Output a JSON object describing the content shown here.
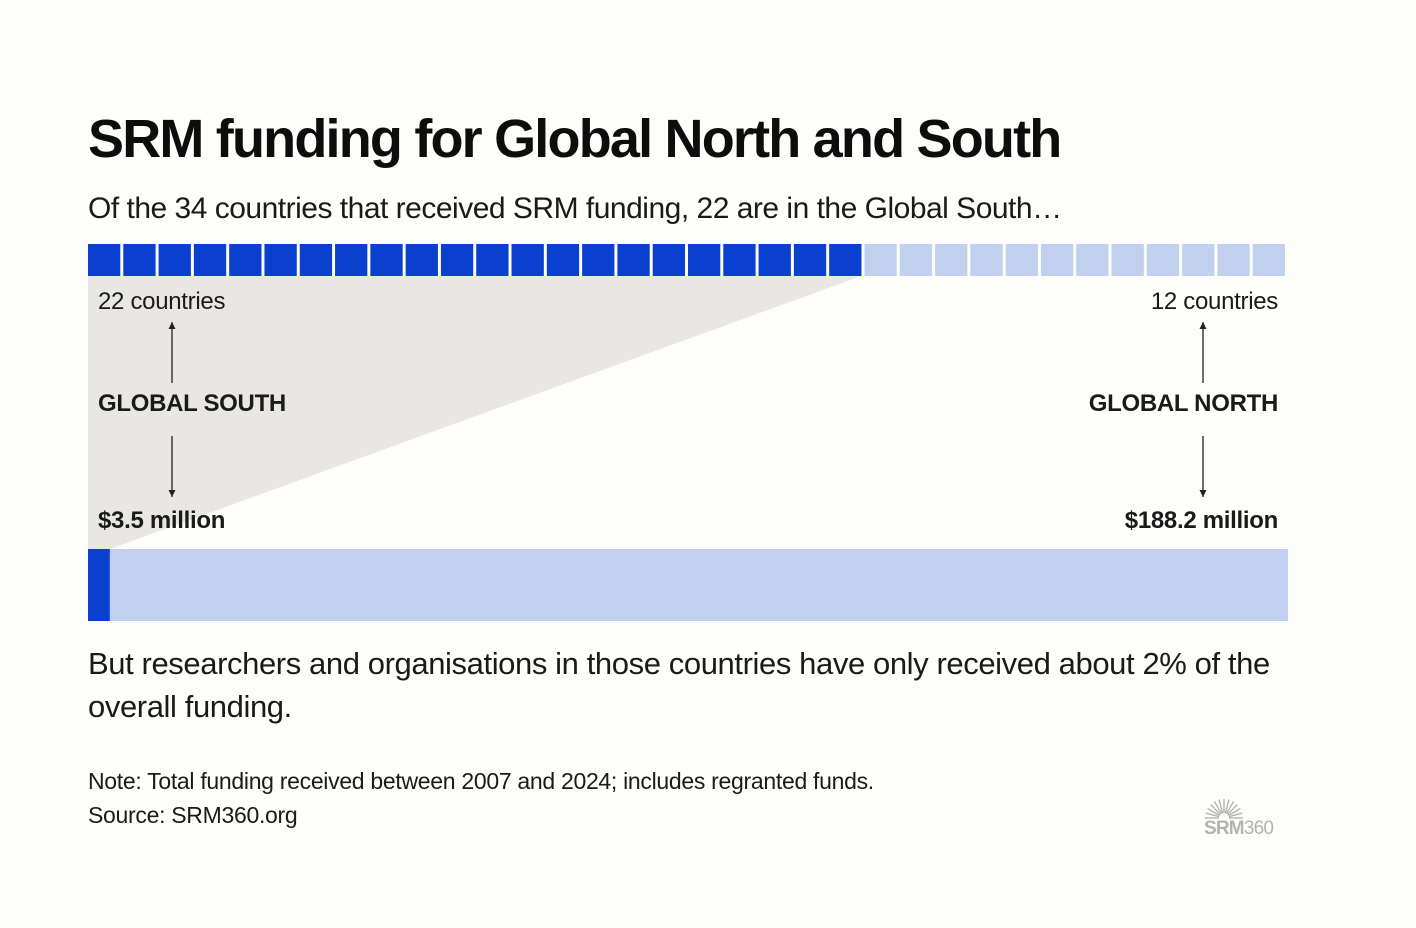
{
  "title": "SRM funding for Global North and South",
  "subtitle": "Of the 34 countries that received SRM funding, 22 are in the Global South…",
  "labels": {
    "south_countries": "22 countries",
    "north_countries": "12 countries",
    "south_name": "GLOBAL SOUTH",
    "north_name": "GLOBAL NORTH",
    "south_funding": "$3.5 million",
    "north_funding": "$188.2 million"
  },
  "body_text": "But researchers and organisations in those countries have only received about 2% of the overall funding.",
  "note": "Note: Total funding received between 2007 and 2024; includes regranted funds.",
  "source": "Source: SRM360.org",
  "logo": {
    "text_bold": "SRM",
    "text_light": "360",
    "icon": "sun-rays-icon"
  },
  "colors": {
    "dark_blue": "#0a3fd0",
    "light_blue": "#c2d0ef",
    "wedge": "#e9e7e4",
    "logo_gray": "#b3b3b3"
  },
  "chart_data": [
    {
      "type": "waffle",
      "categories": [
        "Global South",
        "Global North"
      ],
      "values": [
        22,
        12
      ],
      "unit": "countries"
    },
    {
      "type": "bar",
      "categories": [
        "Global South",
        "Global North"
      ],
      "values": [
        3.5,
        188.2
      ],
      "unit": "million USD"
    }
  ]
}
